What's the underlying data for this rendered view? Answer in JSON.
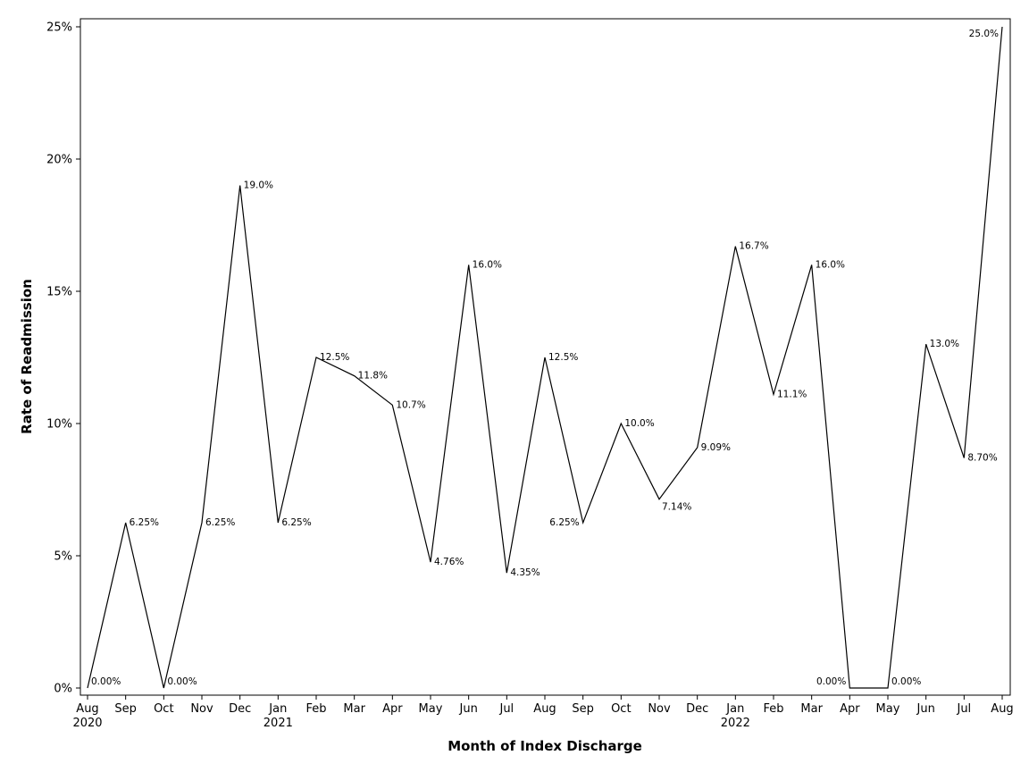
{
  "chart_data": {
    "type": "line",
    "xlabel": "Month of Index Discharge",
    "ylabel": "Rate of Readmission",
    "ylim": [
      0,
      25
    ],
    "y_ticks": [
      "0%",
      "5%",
      "10%",
      "15%",
      "20%",
      "25%"
    ],
    "y_tick_values": [
      0,
      5,
      10,
      15,
      20,
      25
    ],
    "grid": false,
    "line_color": "#000000",
    "categories": [
      "Aug",
      "Sep",
      "Oct",
      "Nov",
      "Dec",
      "Jan",
      "Feb",
      "Mar",
      "Apr",
      "May",
      "Jun",
      "Jul",
      "Aug",
      "Sep",
      "Oct",
      "Nov",
      "Dec",
      "Jan",
      "Feb",
      "Mar",
      "Apr",
      "May",
      "Jun",
      "Jul",
      "Aug"
    ],
    "category_years": [
      "2020",
      "",
      "",
      "",
      "",
      "2021",
      "",
      "",
      "",
      "",
      "",
      "",
      "",
      "",
      "",
      "",
      "",
      "2022",
      "",
      "",
      "",
      "",
      "",
      "",
      ""
    ],
    "series": [
      {
        "values": [
          0,
          6.25,
          0,
          6.25,
          19.0,
          6.25,
          12.5,
          11.8,
          10.7,
          4.76,
          16.0,
          4.35,
          12.5,
          6.25,
          10.0,
          7.14,
          9.09,
          16.7,
          11.1,
          16.0,
          0,
          0,
          13.0,
          8.7,
          25.0
        ],
        "labels": [
          "0.00%",
          "6.25%",
          "0.00%",
          "6.25%",
          "19.0%",
          "6.25%",
          "12.5%",
          "11.8%",
          "10.7%",
          "4.76%",
          "16.0%",
          "4.35%",
          "12.5%",
          "6.25%",
          "10.0%",
          "7.14%",
          "9.09%",
          "16.7%",
          "11.1%",
          "16.0%",
          "0.00%",
          "0.00%",
          "13.0%",
          "8.70%",
          "25.0%"
        ],
        "label_placement": [
          "right",
          "right",
          "right",
          "right",
          "right",
          "right",
          "right",
          "right",
          "right",
          "right",
          "right",
          "right",
          "right",
          "left",
          "right",
          "below-right",
          "right",
          "right",
          "right",
          "right",
          "left",
          "right",
          "right",
          "right",
          "left"
        ]
      }
    ]
  }
}
